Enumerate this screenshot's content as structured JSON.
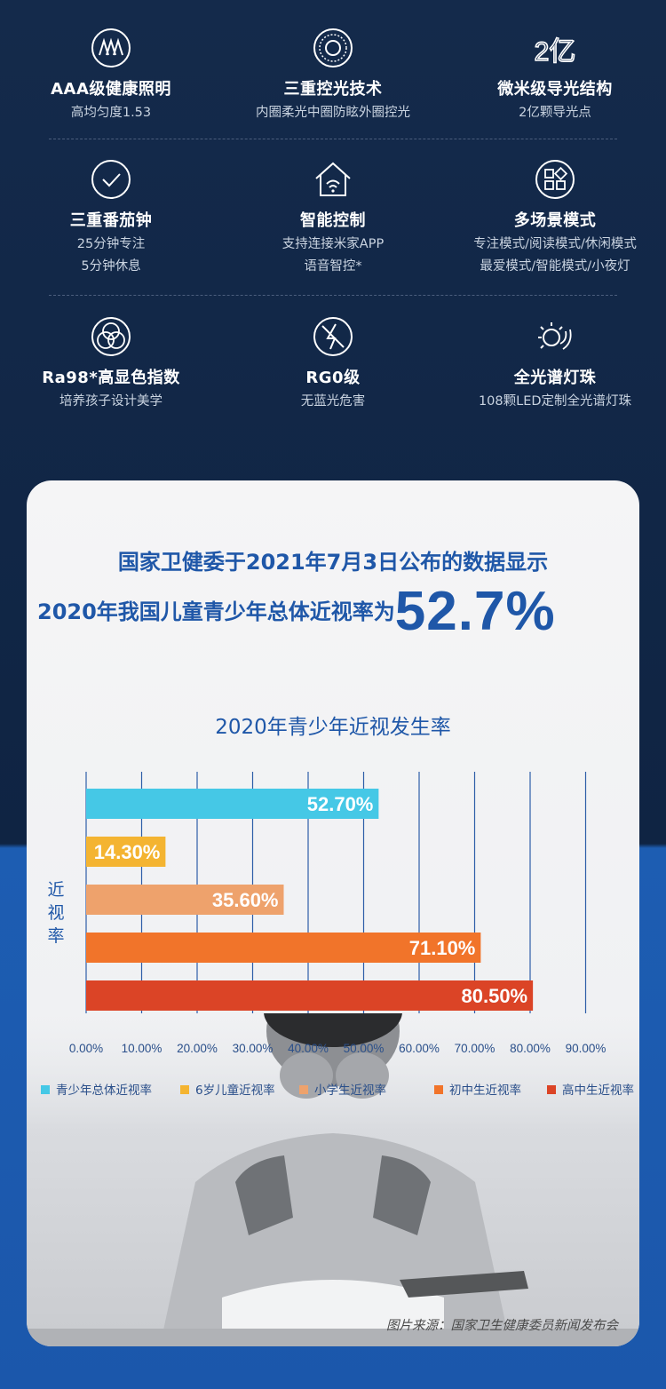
{
  "features": [
    {
      "icon": "aaa-badge-icon",
      "title": "AAA级健康照明",
      "sub": [
        "高均匀度1.53"
      ]
    },
    {
      "icon": "light-ring-icon",
      "title": "三重控光技术",
      "sub": [
        "内圈柔光中圈防眩外圈控光"
      ]
    },
    {
      "icon": "two-hundred-million-icon",
      "icon_text": "2亿",
      "title": "微米级导光结构",
      "sub": [
        "2亿颗导光点"
      ]
    },
    {
      "icon": "check-circle-icon",
      "title": "三重番茄钟",
      "sub": [
        "25分钟专注",
        "5分钟休息"
      ]
    },
    {
      "icon": "smart-home-icon",
      "title": "智能控制",
      "sub": [
        "支持连接米家APP",
        "语音智控*"
      ]
    },
    {
      "icon": "scene-modes-icon",
      "title": "多场景模式",
      "sub": [
        "专注模式/阅读模式/休闲模式",
        "最爱模式/智能模式/小夜灯"
      ]
    },
    {
      "icon": "color-circles-icon",
      "title": "Ra98*高显色指数",
      "sub": [
        "培养孩子设计美学"
      ]
    },
    {
      "icon": "no-blue-light-icon",
      "title": "RG0级",
      "sub": [
        "无蓝光危害"
      ]
    },
    {
      "icon": "full-spectrum-sun-icon",
      "title": "全光谱灯珠",
      "sub": [
        "108颗LED定制全光谱灯珠"
      ]
    }
  ],
  "card": {
    "headline1": "国家卫健委于2021年7月3日公布的数据显示",
    "headline2": "2020年我国儿童青少年总体近视率为",
    "big_number": "52.7%",
    "source": "图片来源：国家卫生健康委员新闻发布会"
  },
  "chart_data": {
    "type": "bar",
    "orientation": "horizontal",
    "title": "2020年青少年近视发生率",
    "ylabel": "近视率",
    "xlabel": "",
    "xlim": [
      0,
      90
    ],
    "x_ticks": [
      "0.00%",
      "10.00%",
      "20.00%",
      "30.00%",
      "40.00%",
      "50.00%",
      "60.00%",
      "70.00%",
      "80.00%",
      "90.00%"
    ],
    "grid": "vertical",
    "legend_position": "bottom",
    "series": [
      {
        "name": "青少年总体近视率",
        "value": 52.7,
        "label": "52.70%",
        "color": "#45c8e6"
      },
      {
        "name": "6岁儿童近视率",
        "value": 14.3,
        "label": "14.30%",
        "color": "#f4b431"
      },
      {
        "name": "小学生近视率",
        "value": 35.6,
        "label": "35.60%",
        "color": "#eea26c"
      },
      {
        "name": "初中生近视率",
        "value": 71.1,
        "label": "71.10%",
        "color": "#f1742a"
      },
      {
        "name": "高中生近视率",
        "value": 80.5,
        "label": "80.50%",
        "color": "#db4426"
      }
    ]
  },
  "colors": {
    "dark_bg": "#0f2443",
    "blue_bg": "#1b57ab",
    "headline_blue": "#1f57a8"
  }
}
